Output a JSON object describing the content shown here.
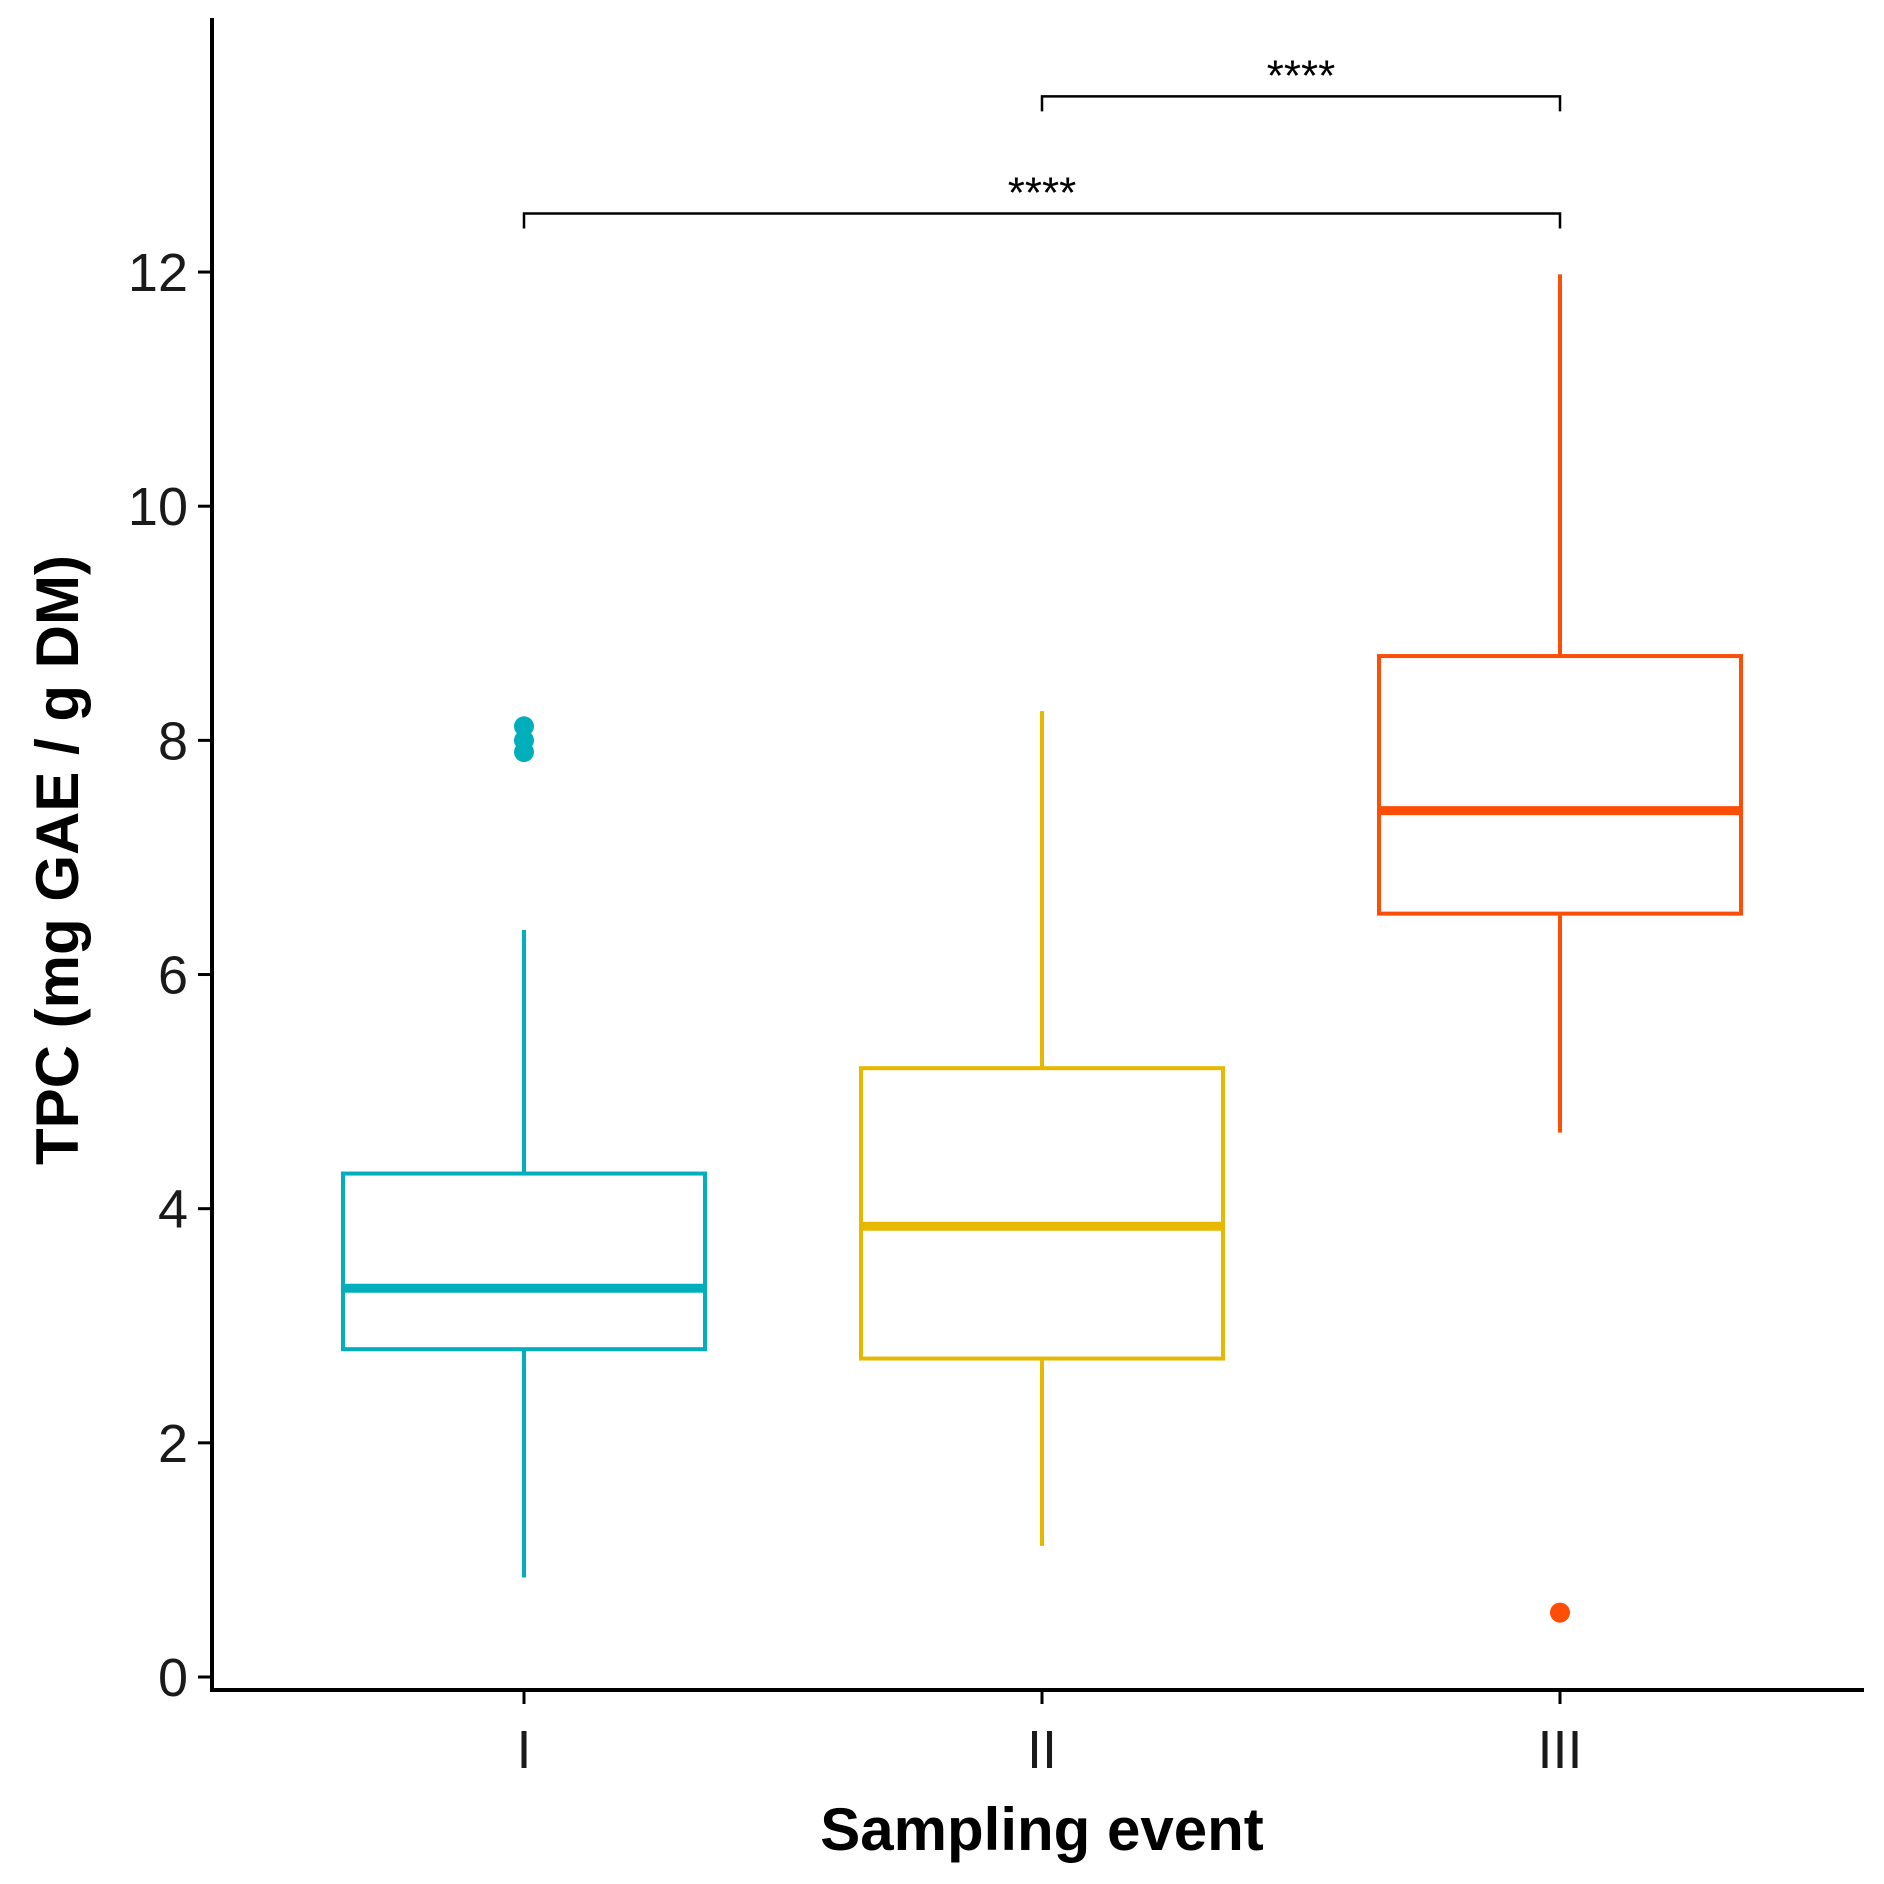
{
  "chart_data": {
    "type": "boxplot",
    "title": "",
    "xlabel": "Sampling event",
    "ylabel": "TPC (mg GAE / g DM)",
    "ylim": [
      -0.3,
      14.2
    ],
    "yticks": [
      "0",
      "2",
      "4",
      "6",
      "8",
      "10",
      "12"
    ],
    "categories": [
      "I",
      "II",
      "III"
    ],
    "groups": [
      {
        "label": "I",
        "color": "#00AFBB",
        "whisker_low": 0.85,
        "q1": 2.8,
        "median": 3.32,
        "q3": 4.3,
        "whisker_high": 6.38,
        "outliers": [
          7.9,
          8.0,
          8.12
        ]
      },
      {
        "label": "II",
        "color": "#E7B800",
        "whisker_low": 1.12,
        "q1": 2.72,
        "median": 3.85,
        "q3": 5.2,
        "whisker_high": 8.25,
        "outliers": []
      },
      {
        "label": "III",
        "color": "#FC4E07",
        "whisker_low": 4.65,
        "q1": 6.52,
        "median": 7.4,
        "q3": 8.72,
        "whisker_high": 11.98,
        "outliers": [
          0.55
        ]
      }
    ],
    "comparisons": [
      {
        "from": "II",
        "to": "III",
        "label": "****",
        "y": 13.5
      },
      {
        "from": "I",
        "to": "III",
        "label": "****",
        "y": 12.5
      }
    ]
  }
}
